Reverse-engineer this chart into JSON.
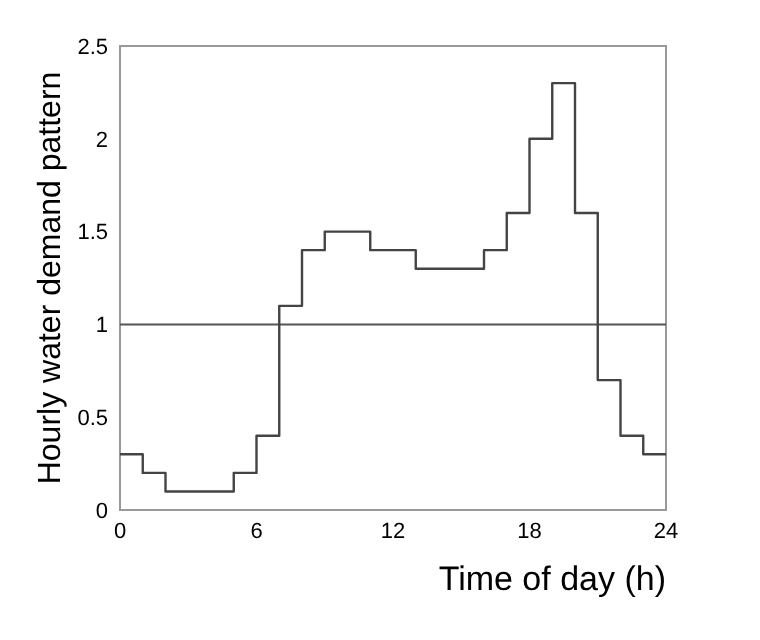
{
  "chart_data": {
    "type": "step",
    "xlabel": "Time of day (h)",
    "ylabel": "Hourly water demand pattern",
    "x": [
      0,
      1,
      2,
      3,
      4,
      5,
      6,
      7,
      8,
      9,
      10,
      11,
      12,
      13,
      14,
      15,
      16,
      17,
      18,
      19,
      20,
      21,
      22,
      23,
      24
    ],
    "series": [
      {
        "color": "#444444",
        "values": [
          0.3,
          0.2,
          0.1,
          0.1,
          0.1,
          0.2,
          0.4,
          1.1,
          1.4,
          1.5,
          1.5,
          1.4,
          1.4,
          1.3,
          1.3,
          1.3,
          1.4,
          1.6,
          2.0,
          2.3,
          1.6,
          0.7,
          0.4,
          0.3,
          0.3
        ]
      }
    ],
    "xlim": [
      0,
      24
    ],
    "xticks": [
      0,
      6,
      12,
      18,
      24
    ],
    "ylim": [
      0,
      2.5
    ],
    "yticks": [
      0,
      0.5,
      1,
      1.5,
      2,
      2.5
    ],
    "ref_lines": [
      {
        "axis": "y",
        "value": 1,
        "color": "#555555"
      }
    ],
    "grid": false
  }
}
